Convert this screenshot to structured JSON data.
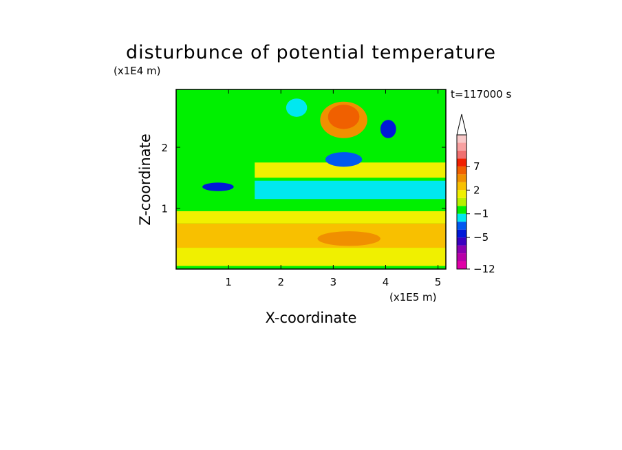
{
  "chart_data": {
    "type": "heatmap",
    "title": "disturbunce of potential temperature",
    "time_label": "t=117000 s",
    "xlabel": "X-coordinate",
    "ylabel": "Z-coordinate",
    "x_unit": "(x1E5 m)",
    "y_unit": "(x1E4 m)",
    "xlim": [
      0,
      5.15
    ],
    "ylim": [
      0,
      2.95
    ],
    "x_ticks": [
      {
        "value": 1,
        "label": "1"
      },
      {
        "value": 2,
        "label": "2"
      },
      {
        "value": 3,
        "label": "3"
      },
      {
        "value": 4,
        "label": "4"
      },
      {
        "value": 5,
        "label": "5"
      }
    ],
    "y_ticks": [
      {
        "value": 1,
        "label": "1"
      },
      {
        "value": 2,
        "label": "2"
      }
    ],
    "colorbar": {
      "extend_max": true,
      "bins_bottom_to_top": [
        {
          "color": "#e000a8"
        },
        {
          "color": "#b800a8"
        },
        {
          "color": "#8a00b0"
        },
        {
          "color": "#3a00c0"
        },
        {
          "color": "#0018d8"
        },
        {
          "color": "#0058f0"
        },
        {
          "color": "#00e8f0"
        },
        {
          "color": "#00f000"
        },
        {
          "color": "#b8f000"
        },
        {
          "color": "#f0f000"
        },
        {
          "color": "#f8c000"
        },
        {
          "color": "#f09000"
        },
        {
          "color": "#f06000"
        },
        {
          "color": "#f02000"
        },
        {
          "color": "#f07070"
        },
        {
          "color": "#f8a0a0"
        },
        {
          "color": "#f8c8c8"
        }
      ],
      "labels": [
        {
          "value": -12,
          "label": "−12",
          "bin_edge": 0
        },
        {
          "value": -5,
          "label": "−5",
          "bin_edge": 4
        },
        {
          "value": -1,
          "label": "−1",
          "bin_edge": 7
        },
        {
          "value": 2,
          "label": "2",
          "bin_edge": 10
        },
        {
          "value": 7,
          "label": "7",
          "bin_edge": 13
        }
      ]
    },
    "features": [
      {
        "kind": "band",
        "z": [
          0.05,
          0.35
        ],
        "x": [
          0.0,
          5.15
        ],
        "level": 9
      },
      {
        "kind": "band",
        "z": [
          0.35,
          0.75
        ],
        "x": [
          0.0,
          5.15
        ],
        "level": 10
      },
      {
        "kind": "band",
        "z": [
          0.75,
          0.95
        ],
        "x": [
          0.0,
          5.15
        ],
        "level": 9
      },
      {
        "kind": "band",
        "z": [
          1.15,
          1.45
        ],
        "x": [
          1.5,
          5.15
        ],
        "level": 6
      },
      {
        "kind": "band",
        "z": [
          1.5,
          1.75
        ],
        "x": [
          1.5,
          5.15
        ],
        "level": 9
      },
      {
        "kind": "blob",
        "x": 3.2,
        "z": 2.45,
        "rx": 0.45,
        "rz": 0.3,
        "level": 11
      },
      {
        "kind": "blob",
        "x": 3.2,
        "z": 2.5,
        "rx": 0.3,
        "rz": 0.2,
        "level": 12
      },
      {
        "kind": "blob",
        "x": 3.2,
        "z": 1.8,
        "rx": 0.35,
        "rz": 0.12,
        "level": 5
      },
      {
        "kind": "blob",
        "x": 4.05,
        "z": 2.3,
        "rx": 0.15,
        "rz": 0.15,
        "level": 4
      },
      {
        "kind": "blob",
        "x": 0.8,
        "z": 1.35,
        "rx": 0.3,
        "rz": 0.07,
        "level": 4
      },
      {
        "kind": "blob",
        "x": 3.3,
        "z": 0.5,
        "rx": 0.6,
        "rz": 0.12,
        "level": 11
      },
      {
        "kind": "blob",
        "x": 2.3,
        "z": 2.65,
        "rx": 0.2,
        "rz": 0.15,
        "level": 6
      }
    ]
  }
}
